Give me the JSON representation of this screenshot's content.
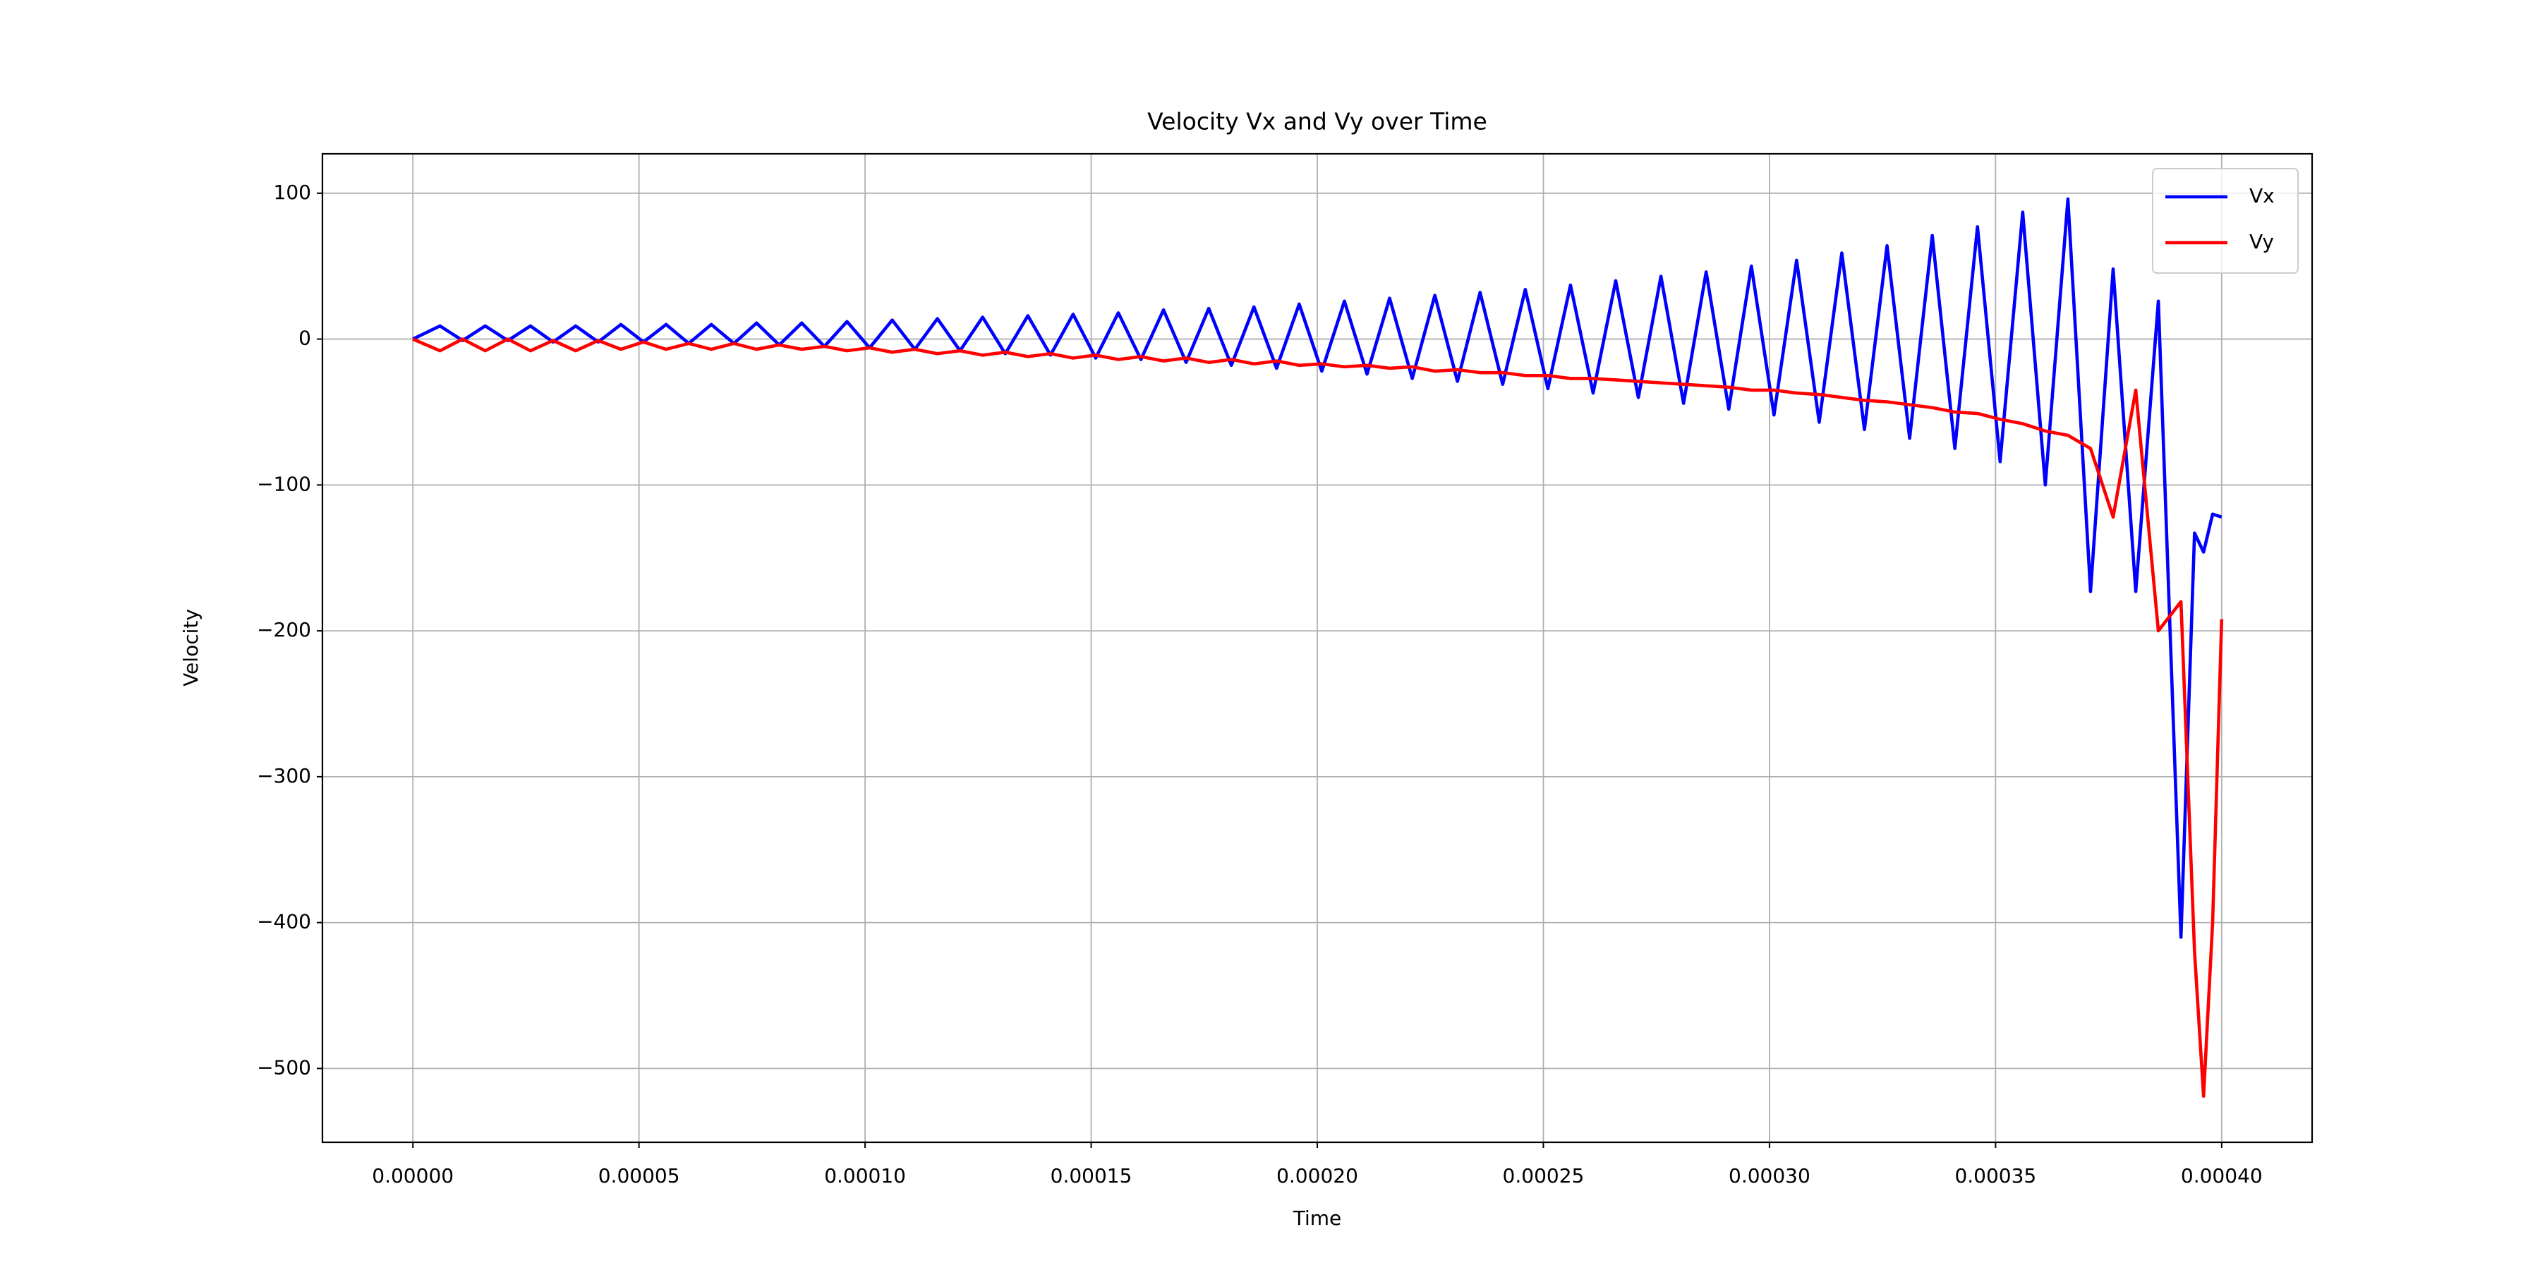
{
  "chart_data": {
    "type": "line",
    "title": "Velocity Vx and Vy over Time",
    "x_label": "Time",
    "y_label": "Velocity",
    "x": [
      0,
      6e-06,
      1.1e-05,
      1.6e-05,
      2.1e-05,
      2.6e-05,
      3.1e-05,
      3.6e-05,
      4.1e-05,
      4.6e-05,
      5.1e-05,
      5.6e-05,
      6.1e-05,
      6.6e-05,
      7.1e-05,
      7.6e-05,
      8.1e-05,
      8.6e-05,
      9.1e-05,
      9.6e-05,
      0.000101,
      0.000106,
      0.000111,
      0.000116,
      0.000121,
      0.000126,
      0.000131,
      0.000136,
      0.000141,
      0.000146,
      0.000151,
      0.000156,
      0.000161,
      0.000166,
      0.000171,
      0.000176,
      0.000181,
      0.000186,
      0.000191,
      0.000196,
      0.000201,
      0.000206,
      0.000211,
      0.000216,
      0.000221,
      0.000226,
      0.000231,
      0.000236,
      0.000241,
      0.000246,
      0.000251,
      0.000256,
      0.000261,
      0.000266,
      0.000271,
      0.000276,
      0.000281,
      0.000286,
      0.000291,
      0.000296,
      0.000301,
      0.000306,
      0.000311,
      0.000316,
      0.000321,
      0.000326,
      0.000331,
      0.000336,
      0.000341,
      0.000346,
      0.000351,
      0.000356,
      0.000361,
      0.000366,
      0.000371,
      0.000376,
      0.000381,
      0.000386,
      0.000391,
      0.000394,
      0.000396,
      0.000398,
      0.0004
    ],
    "series": [
      {
        "name": "Vx",
        "color": "#0000ff",
        "values": [
          0,
          9,
          -1,
          9,
          -1,
          9,
          -2,
          9,
          -2,
          10,
          -2,
          10,
          -3,
          10,
          -3,
          11,
          -4,
          11,
          -5,
          12,
          -6,
          13,
          -7,
          14,
          -8,
          15,
          -10,
          16,
          -11,
          17,
          -13,
          18,
          -14,
          20,
          -16,
          21,
          -18,
          22,
          -20,
          24,
          -22,
          26,
          -24,
          28,
          -27,
          30,
          -29,
          32,
          -31,
          34,
          -34,
          37,
          -37,
          40,
          -40,
          43,
          -44,
          46,
          -48,
          50,
          -52,
          54,
          -57,
          59,
          -62,
          64,
          -68,
          71,
          -75,
          77,
          -84,
          87,
          -100,
          96,
          -173,
          48,
          -173,
          26,
          -410,
          -133,
          -146,
          -120,
          -122
        ]
      },
      {
        "name": "Vy",
        "color": "#ff0000",
        "values": [
          0,
          -8,
          0,
          -8,
          0,
          -8,
          -1,
          -8,
          -1,
          -7,
          -2,
          -7,
          -3,
          -7,
          -3,
          -7,
          -4,
          -7,
          -5,
          -8,
          -6,
          -9,
          -7,
          -10,
          -8,
          -11,
          -9,
          -12,
          -10,
          -13,
          -11,
          -14,
          -12,
          -15,
          -13,
          -16,
          -14,
          -17,
          -15,
          -18,
          -17,
          -19,
          -18,
          -20,
          -19,
          -22,
          -21,
          -23,
          -23,
          -25,
          -25,
          -27,
          -27,
          -28,
          -29,
          -30,
          -31,
          -32,
          -33,
          -35,
          -35,
          -37,
          -38,
          -40,
          -42,
          -43,
          -45,
          -47,
          -50,
          -51,
          -55,
          -58,
          -63,
          -66,
          -75,
          -122,
          -35,
          -200,
          -180,
          -420,
          -519,
          -400,
          -192
        ]
      }
    ],
    "xlim": [
      -2e-05,
      0.00042
    ],
    "xticks": [
      {
        "value": 0,
        "label": "0.00000"
      },
      {
        "value": 5e-05,
        "label": "0.00005"
      },
      {
        "value": 0.0001,
        "label": "0.00010"
      },
      {
        "value": 0.00015,
        "label": "0.00015"
      },
      {
        "value": 0.0002,
        "label": "0.00020"
      },
      {
        "value": 0.00025,
        "label": "0.00025"
      },
      {
        "value": 0.0003,
        "label": "0.00030"
      },
      {
        "value": 0.00035,
        "label": "0.00035"
      },
      {
        "value": 0.0004,
        "label": "0.00040"
      }
    ],
    "ylim": [
      -550.6,
      127
    ],
    "yticks": [
      {
        "value": -500,
        "label": "−500"
      },
      {
        "value": -400,
        "label": "−400"
      },
      {
        "value": -300,
        "label": "−300"
      },
      {
        "value": -200,
        "label": "−200"
      },
      {
        "value": -100,
        "label": "−100"
      },
      0,
      100
    ],
    "grid": true,
    "legend": "upper right"
  }
}
